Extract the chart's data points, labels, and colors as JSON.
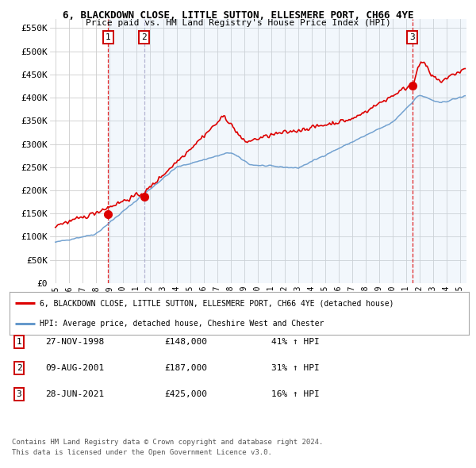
{
  "title_line1": "6, BLACKDOWN CLOSE, LITTLE SUTTON, ELLESMERE PORT, CH66 4YE",
  "title_line2": "Price paid vs. HM Land Registry's House Price Index (HPI)",
  "ylim": [
    0,
    570000
  ],
  "yticks": [
    0,
    50000,
    100000,
    150000,
    200000,
    250000,
    300000,
    350000,
    400000,
    450000,
    500000,
    550000
  ],
  "ytick_labels": [
    "£0",
    "£50K",
    "£100K",
    "£150K",
    "£200K",
    "£250K",
    "£300K",
    "£350K",
    "£400K",
    "£450K",
    "£500K",
    "£550K"
  ],
  "xlim_start": 1994.6,
  "xlim_end": 2025.5,
  "xticks": [
    1995,
    1996,
    1997,
    1998,
    1999,
    2000,
    2001,
    2002,
    2003,
    2004,
    2005,
    2006,
    2007,
    2008,
    2009,
    2010,
    2011,
    2012,
    2013,
    2014,
    2015,
    2016,
    2017,
    2018,
    2019,
    2020,
    2021,
    2022,
    2023,
    2024,
    2025
  ],
  "sale_dates": [
    1998.9,
    2001.6,
    2021.48
  ],
  "sale_prices": [
    148000,
    187000,
    425000
  ],
  "sale_labels": [
    "1",
    "2",
    "3"
  ],
  "red_line_color": "#dd0000",
  "blue_line_color": "#6699cc",
  "shade_color": "#cce0f5",
  "vline_color": "#dd0000",
  "vline2_color": "#aaaacc",
  "legend_line1": "6, BLACKDOWN CLOSE, LITTLE SUTTON, ELLESMERE PORT, CH66 4YE (detached house)",
  "legend_line2": "HPI: Average price, detached house, Cheshire West and Chester",
  "table_data": [
    [
      "1",
      "27-NOV-1998",
      "£148,000",
      "41% ↑ HPI"
    ],
    [
      "2",
      "09-AUG-2001",
      "£187,000",
      "31% ↑ HPI"
    ],
    [
      "3",
      "28-JUN-2021",
      "£425,000",
      "16% ↑ HPI"
    ]
  ],
  "footer_line1": "Contains HM Land Registry data © Crown copyright and database right 2024.",
  "footer_line2": "This data is licensed under the Open Government Licence v3.0.",
  "background_color": "#ffffff",
  "grid_color": "#cccccc"
}
